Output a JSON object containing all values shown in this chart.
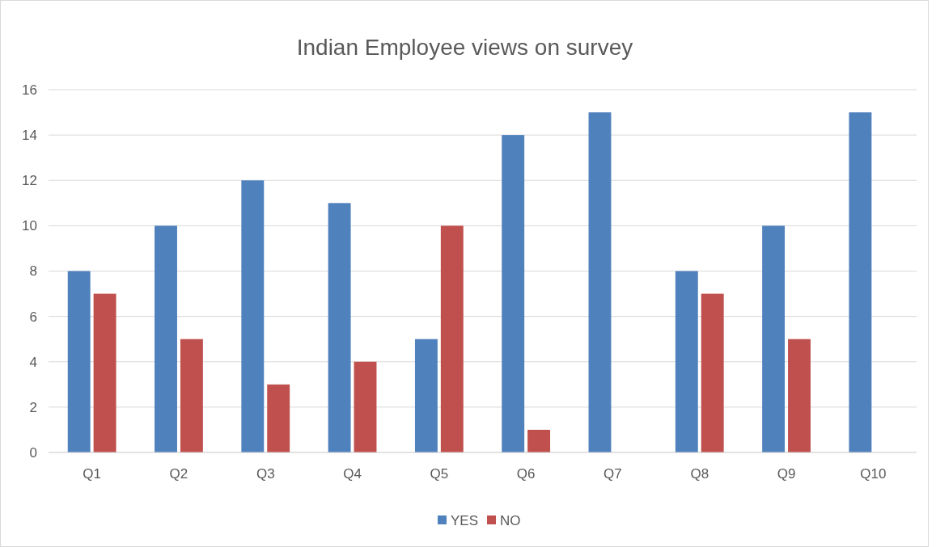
{
  "chart_data": {
    "type": "bar",
    "title": "Indian Employee views on survey",
    "categories": [
      "Q1",
      "Q2",
      "Q3",
      "Q4",
      "Q5",
      "Q6",
      "Q7",
      "Q8",
      "Q9",
      "Q10"
    ],
    "series": [
      {
        "name": "YES",
        "color": "#4f81bd",
        "values": [
          8,
          10,
          12,
          11,
          5,
          14,
          15,
          8,
          10,
          15
        ]
      },
      {
        "name": "NO",
        "color": "#c0504d",
        "values": [
          7,
          5,
          3,
          4,
          10,
          1,
          0,
          7,
          5,
          0
        ]
      }
    ],
    "ylim": [
      0,
      16
    ],
    "yticks": [
      0,
      2,
      4,
      6,
      8,
      10,
      12,
      14,
      16
    ],
    "grid": "y",
    "legend": "bottom"
  }
}
